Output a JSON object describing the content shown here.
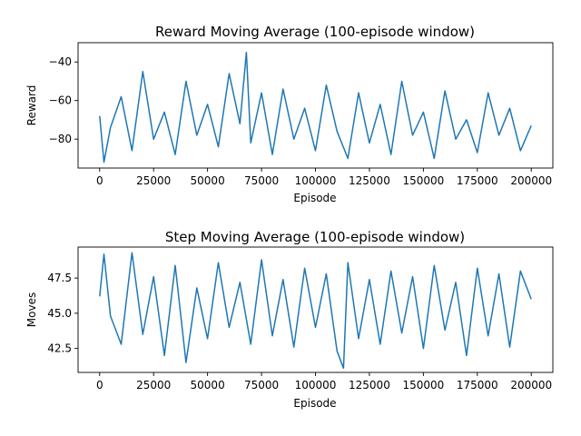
{
  "chart_data": [
    {
      "type": "line",
      "title": "Reward Moving Average (100-episode window)",
      "xlabel": "Episode",
      "ylabel": "Reward",
      "xlim": [
        -10000,
        210000
      ],
      "ylim": [
        -95,
        -30
      ],
      "xticks": [
        0,
        25000,
        50000,
        75000,
        100000,
        125000,
        150000,
        175000,
        200000
      ],
      "xtick_labels": [
        "0",
        "25000",
        "50000",
        "75000",
        "100000",
        "125000",
        "150000",
        "175000",
        "200000"
      ],
      "yticks": [
        -80,
        -60,
        -40
      ],
      "ytick_labels": [
        "−80",
        "−60",
        "−40"
      ],
      "grid": false,
      "color": "#1f77b4",
      "series": [
        {
          "name": "",
          "x": [
            0,
            2000,
            5000,
            10000,
            15000,
            20000,
            25000,
            30000,
            35000,
            40000,
            45000,
            50000,
            55000,
            60000,
            65000,
            68000,
            70000,
            75000,
            80000,
            85000,
            90000,
            95000,
            100000,
            105000,
            110000,
            115000,
            120000,
            125000,
            130000,
            135000,
            140000,
            145000,
            150000,
            155000,
            160000,
            165000,
            170000,
            175000,
            180000,
            185000,
            190000,
            195000,
            200000
          ],
          "y": [
            -68,
            -92,
            -74,
            -58,
            -86,
            -45,
            -80,
            -66,
            -88,
            -50,
            -78,
            -62,
            -84,
            -46,
            -72,
            -35,
            -82,
            -56,
            -88,
            -54,
            -80,
            -64,
            -86,
            -52,
            -76,
            -90,
            -56,
            -82,
            -62,
            -88,
            -50,
            -78,
            -66,
            -90,
            -55,
            -80,
            -70,
            -87,
            -56,
            -78,
            -64,
            -86,
            -73
          ]
        }
      ]
    },
    {
      "type": "line",
      "title": "Step Moving Average (100-episode window)",
      "xlabel": "Episode",
      "ylabel": "Moves",
      "xlim": [
        -10000,
        210000
      ],
      "ylim": [
        40.8,
        49.7
      ],
      "xticks": [
        0,
        25000,
        50000,
        75000,
        100000,
        125000,
        150000,
        175000,
        200000
      ],
      "xtick_labels": [
        "0",
        "25000",
        "50000",
        "75000",
        "100000",
        "125000",
        "150000",
        "175000",
        "200000"
      ],
      "yticks": [
        42.5,
        45.0,
        47.5
      ],
      "ytick_labels": [
        "42.5",
        "45.0",
        "47.5"
      ],
      "grid": false,
      "color": "#1f77b4",
      "series": [
        {
          "name": "",
          "x": [
            0,
            2000,
            5000,
            10000,
            15000,
            20000,
            25000,
            30000,
            35000,
            40000,
            45000,
            50000,
            55000,
            60000,
            65000,
            70000,
            75000,
            80000,
            85000,
            90000,
            95000,
            100000,
            105000,
            110000,
            113000,
            115000,
            120000,
            125000,
            130000,
            135000,
            140000,
            145000,
            150000,
            155000,
            160000,
            165000,
            170000,
            175000,
            180000,
            185000,
            190000,
            195000,
            200000
          ],
          "y": [
            46.2,
            49.2,
            44.8,
            42.8,
            49.3,
            43.5,
            47.6,
            42.0,
            48.4,
            41.5,
            46.8,
            43.2,
            48.6,
            44.0,
            47.2,
            42.8,
            48.8,
            43.4,
            47.4,
            42.6,
            48.2,
            44.0,
            47.8,
            42.3,
            41.1,
            48.6,
            43.2,
            47.4,
            42.8,
            48.0,
            43.6,
            47.6,
            42.5,
            48.4,
            43.8,
            47.2,
            42.0,
            48.2,
            43.4,
            47.8,
            42.6,
            48.0,
            46.0
          ]
        }
      ]
    }
  ]
}
